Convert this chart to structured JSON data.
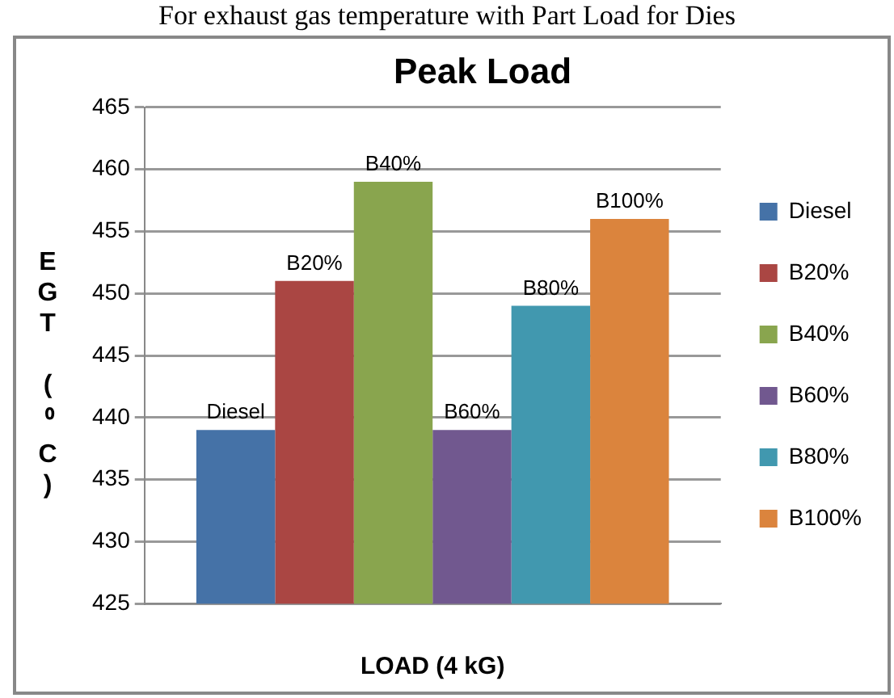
{
  "chart_data": {
    "type": "bar",
    "title": "Peak Load",
    "xlabel": "LOAD (4 kG)",
    "ylabel": "EGT (⁰C)",
    "annotations": [
      "For exhaust gas temperature with Part Load for Dies"
    ],
    "categories": [
      null
    ],
    "series": [
      {
        "name": "Diesel",
        "color": "#4572a7",
        "values": [
          439
        ]
      },
      {
        "name": "B20%",
        "color": "#aa4643",
        "values": [
          451
        ]
      },
      {
        "name": "B40%",
        "color": "#89a54e",
        "values": [
          459
        ]
      },
      {
        "name": "B60%",
        "color": "#71588f",
        "values": [
          439
        ]
      },
      {
        "name": "B80%",
        "color": "#4198af",
        "values": [
          449
        ]
      },
      {
        "name": "B100%",
        "color": "#db843d",
        "values": [
          456
        ]
      }
    ],
    "ylim": [
      425,
      465
    ],
    "yticks": [
      425,
      430,
      435,
      440,
      445,
      450,
      455,
      460,
      465
    ],
    "grid": "y",
    "legend": "right"
  }
}
